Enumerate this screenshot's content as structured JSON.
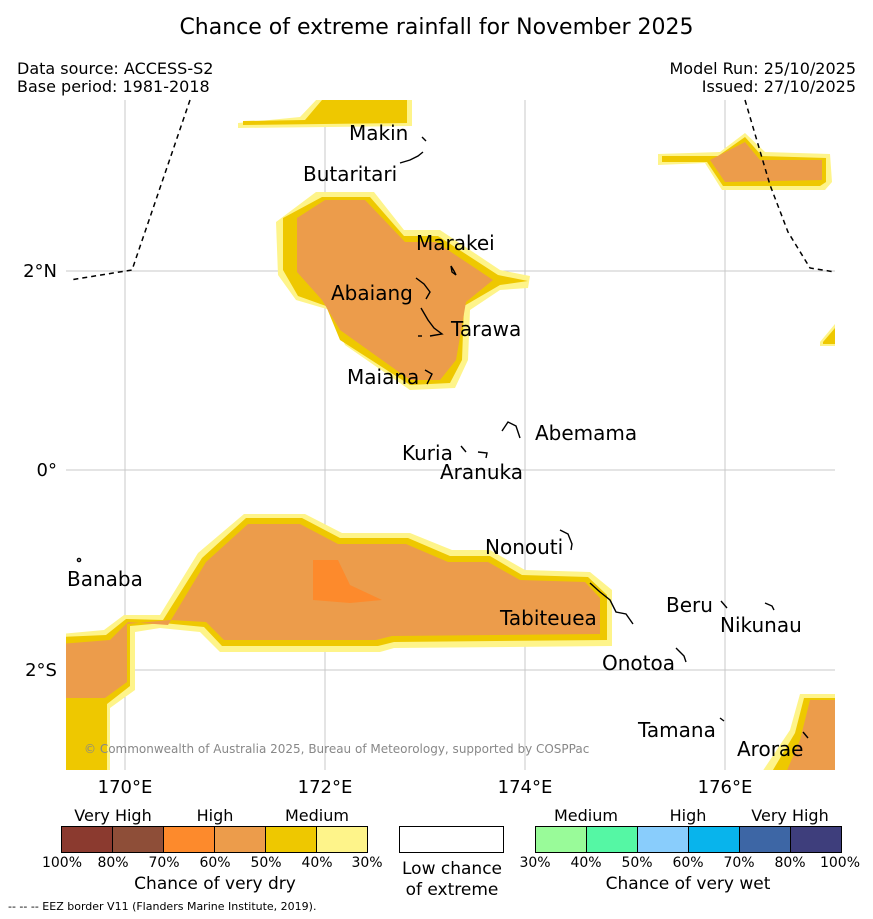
{
  "header": {
    "title": "Chance of extreme rainfall for November 2025",
    "data_source": "Data source: ACCESS-S2",
    "base_period": "Base period: 1981-2018",
    "model_run": "Model Run: 25/10/2025",
    "issued": "Issued: 27/10/2025"
  },
  "map": {
    "lat_labels": [
      "2°N",
      "0°",
      "2°S"
    ],
    "lon_labels": [
      "170°E",
      "172°E",
      "174°E",
      "176°E"
    ],
    "islands": [
      "Makin",
      "Butaritari",
      "Marakei",
      "Abaiang",
      "Tarawa",
      "Maiana",
      "Abemama",
      "Kuria",
      "Aranuka",
      "Nonouti",
      "Banaba",
      "Tabiteuea",
      "Beru",
      "Nikunau",
      "Onotoa",
      "Tamana",
      "Arorae"
    ],
    "copyright": "© Commonwealth of Australia 2025, Bureau of Meteorology, supported by COSPPac"
  },
  "legend": {
    "dry": {
      "group_labels": [
        "Very High",
        "High",
        "Medium"
      ],
      "ticks": [
        "100%",
        "80%",
        "70%",
        "60%",
        "50%",
        "40%",
        "30%"
      ],
      "colors": [
        "#8b3a2f",
        "#8e4e38",
        "#fd8a2c",
        "#ec9c4b",
        "#eec800",
        "#fef48a"
      ],
      "title": "Chance of very dry"
    },
    "low": {
      "label_line1": "Low chance",
      "label_line2": "of extreme"
    },
    "wet": {
      "group_labels": [
        "Medium",
        "High",
        "Very High"
      ],
      "ticks": [
        "30%",
        "40%",
        "50%",
        "60%",
        "70%",
        "80%",
        "100%"
      ],
      "colors": [
        "#99fb99",
        "#55f7a4",
        "#89cdfc",
        "#08b4ec",
        "#3d66a5",
        "#3e3e7c"
      ],
      "title": "Chance of very wet"
    }
  },
  "footnote": "-- -- -- EEZ border V11 (Flanders Marine Institute, 2019)."
}
